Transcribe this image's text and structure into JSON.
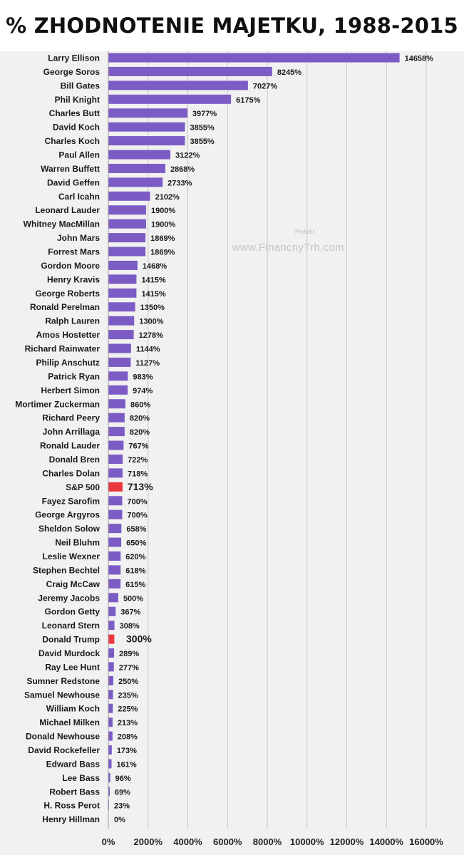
{
  "title": "% ZHODNOTENIE MAJETKU, 1988-2015",
  "watermark": {
    "small_text": "Preložil:",
    "text": "www.FinancnyTrh.com"
  },
  "colors": {
    "bar": "#7c5cc4",
    "highlight": "#e8383d",
    "background": "#f1f1f1",
    "grid": "#c8c8c8"
  },
  "chart_data": {
    "type": "bar",
    "orientation": "horizontal",
    "title": "% ZHODNOTENIE MAJETKU, 1988-2015",
    "xlim": [
      0,
      16000
    ],
    "xticks": [
      "0%",
      "2000%",
      "4000%",
      "6000%",
      "8000%",
      "10000%",
      "12000%",
      "14000%",
      "16000%"
    ],
    "grid": true,
    "categories": [
      "Larry Ellison",
      "George Soros",
      "Bill Gates",
      "Phil Knight",
      "Charles Butt",
      "David Koch",
      "Charles Koch",
      "Paul Allen",
      "Warren Buffett",
      "David Geffen",
      "Carl Icahn",
      "Leonard Lauder",
      "Whitney MacMillan",
      "John Mars",
      "Forrest Mars",
      "Gordon Moore",
      "Henry Kravis",
      "George Roberts",
      "Ronald Perelman",
      "Ralph Lauren",
      "Amos Hostetter",
      "Richard Rainwater",
      "Philip Anschutz",
      "Patrick Ryan",
      "Herbert Simon",
      "Mortimer Zuckerman",
      "Richard Peery",
      "John Arrillaga",
      "Ronald Lauder",
      "Donald Bren",
      "Charles Dolan",
      "S&P 500",
      "Fayez Sarofim",
      "George Argyros",
      "Sheldon Solow",
      "Neil Bluhm",
      "Leslie Wexner",
      "Stephen Bechtel",
      "Craig McCaw",
      "Jeremy Jacobs",
      "Gordon Getty",
      "Leonard Stern",
      "Donald Trump",
      "David Murdock",
      "Ray Lee Hunt",
      "Sumner Redstone",
      "Samuel Newhouse",
      "William Koch",
      "Michael Milken",
      "Donald Newhouse",
      "David Rockefeller",
      "Edward Bass",
      "Lee Bass",
      "Robert Bass",
      "H. Ross Perot",
      "Henry Hillman"
    ],
    "values": [
      14658,
      8245,
      7027,
      6175,
      3977,
      3855,
      3855,
      3122,
      2868,
      2733,
      2102,
      1900,
      1900,
      1869,
      1869,
      1468,
      1415,
      1415,
      1350,
      1300,
      1278,
      1144,
      1127,
      983,
      974,
      860,
      820,
      820,
      767,
      722,
      718,
      713,
      700,
      700,
      658,
      650,
      620,
      618,
      615,
      500,
      367,
      308,
      300,
      289,
      277,
      250,
      235,
      225,
      213,
      208,
      173,
      161,
      96,
      69,
      23,
      0
    ],
    "value_labels": [
      "14658%",
      "8245%",
      "7027%",
      "6175%",
      "3977%",
      "3855%",
      "3855%",
      "3122%",
      "2868%",
      "2733%",
      "2102%",
      "1900%",
      "1900%",
      "1869%",
      "1869%",
      "1468%",
      "1415%",
      "1415%",
      "1350%",
      "1300%",
      "1278%",
      "1144%",
      "1127%",
      "983%",
      "974%",
      "860%",
      "820%",
      "820%",
      "767%",
      "722%",
      "718%",
      "713%",
      "700%",
      "700%",
      "658%",
      "650%",
      "620%",
      "618%",
      "615%",
      "500%",
      "367%",
      "308%",
      "300%",
      "289%",
      "277%",
      "250%",
      "235%",
      "225%",
      "213%",
      "208%",
      "173%",
      "161%",
      "96%",
      "69%",
      "23%",
      "0%"
    ],
    "highlighted": [
      "S&P 500",
      "Donald Trump"
    ]
  }
}
